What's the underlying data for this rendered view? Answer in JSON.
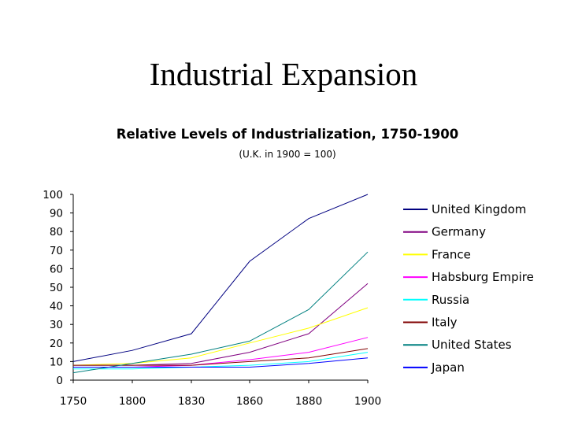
{
  "slide": {
    "title": "Industrial Expansion"
  },
  "chart_data": {
    "type": "line",
    "title": "Relative Levels of Industrialization, 1750-1900",
    "subtitle": "(U.K. in 1900 = 100)",
    "xlabel": "",
    "ylabel": "",
    "categories": [
      "1750",
      "1800",
      "1830",
      "1860",
      "1880",
      "1900"
    ],
    "ylim": [
      0,
      100
    ],
    "yticks": [
      0,
      10,
      20,
      30,
      40,
      50,
      60,
      70,
      80,
      90,
      100
    ],
    "grid": false,
    "legend_position": "right",
    "series": [
      {
        "name": "United Kingdom",
        "color": "#000080",
        "values": [
          10,
          16,
          25,
          64,
          87,
          100
        ]
      },
      {
        "name": "Germany",
        "color": "#800080",
        "values": [
          8,
          8,
          9,
          15,
          25,
          52
        ]
      },
      {
        "name": "France",
        "color": "#FFFF00",
        "values": [
          8,
          9,
          12,
          20,
          28,
          39
        ]
      },
      {
        "name": "Habsburg Empire",
        "color": "#FF00FF",
        "values": [
          7,
          7,
          8,
          11,
          15,
          23
        ]
      },
      {
        "name": "Russia",
        "color": "#00FFFF",
        "values": [
          6,
          6,
          7,
          8,
          10,
          15
        ]
      },
      {
        "name": "Italy",
        "color": "#800000",
        "values": [
          8,
          8,
          8,
          10,
          12,
          17
        ]
      },
      {
        "name": "United States",
        "color": "#008080",
        "values": [
          4,
          9,
          14,
          21,
          38,
          69
        ]
      },
      {
        "name": "Japan",
        "color": "#0000FF",
        "values": [
          7,
          7,
          7,
          7,
          9,
          12
        ]
      }
    ]
  }
}
